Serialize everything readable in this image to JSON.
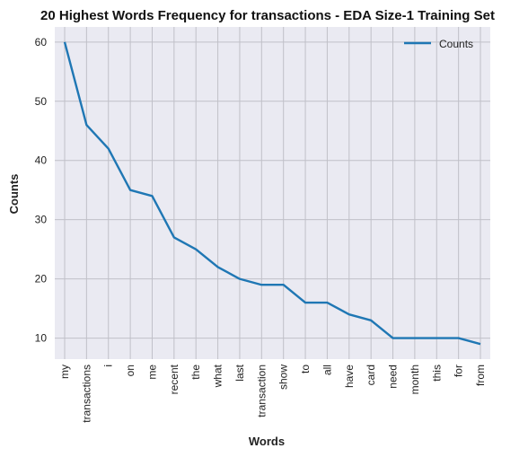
{
  "chart_data": {
    "type": "line",
    "title": "20 Highest Words Frequency for transactions - EDA Size-1 Training Set",
    "xlabel": "Words",
    "ylabel": "Counts",
    "categories": [
      "my",
      "transactions",
      "i",
      "on",
      "me",
      "recent",
      "the",
      "what",
      "last",
      "transaction",
      "show",
      "to",
      "all",
      "have",
      "card",
      "need",
      "month",
      "this",
      "for",
      "from"
    ],
    "series": [
      {
        "name": "Counts",
        "values": [
          60,
          46,
          42,
          35,
          34,
          27,
          25,
          22,
          20,
          19,
          19,
          16,
          16,
          14,
          13,
          10,
          10,
          10,
          10,
          9
        ],
        "color": "#1f77b4"
      }
    ],
    "ylim": [
      6.45,
      62.55
    ],
    "yticks": [
      10,
      20,
      30,
      40,
      50,
      60
    ],
    "grid": true,
    "legend": "top-right",
    "colors": {
      "plot_background": "#eaeaf2",
      "grid": "#c0c0c8",
      "line": "#1f77b4"
    }
  }
}
